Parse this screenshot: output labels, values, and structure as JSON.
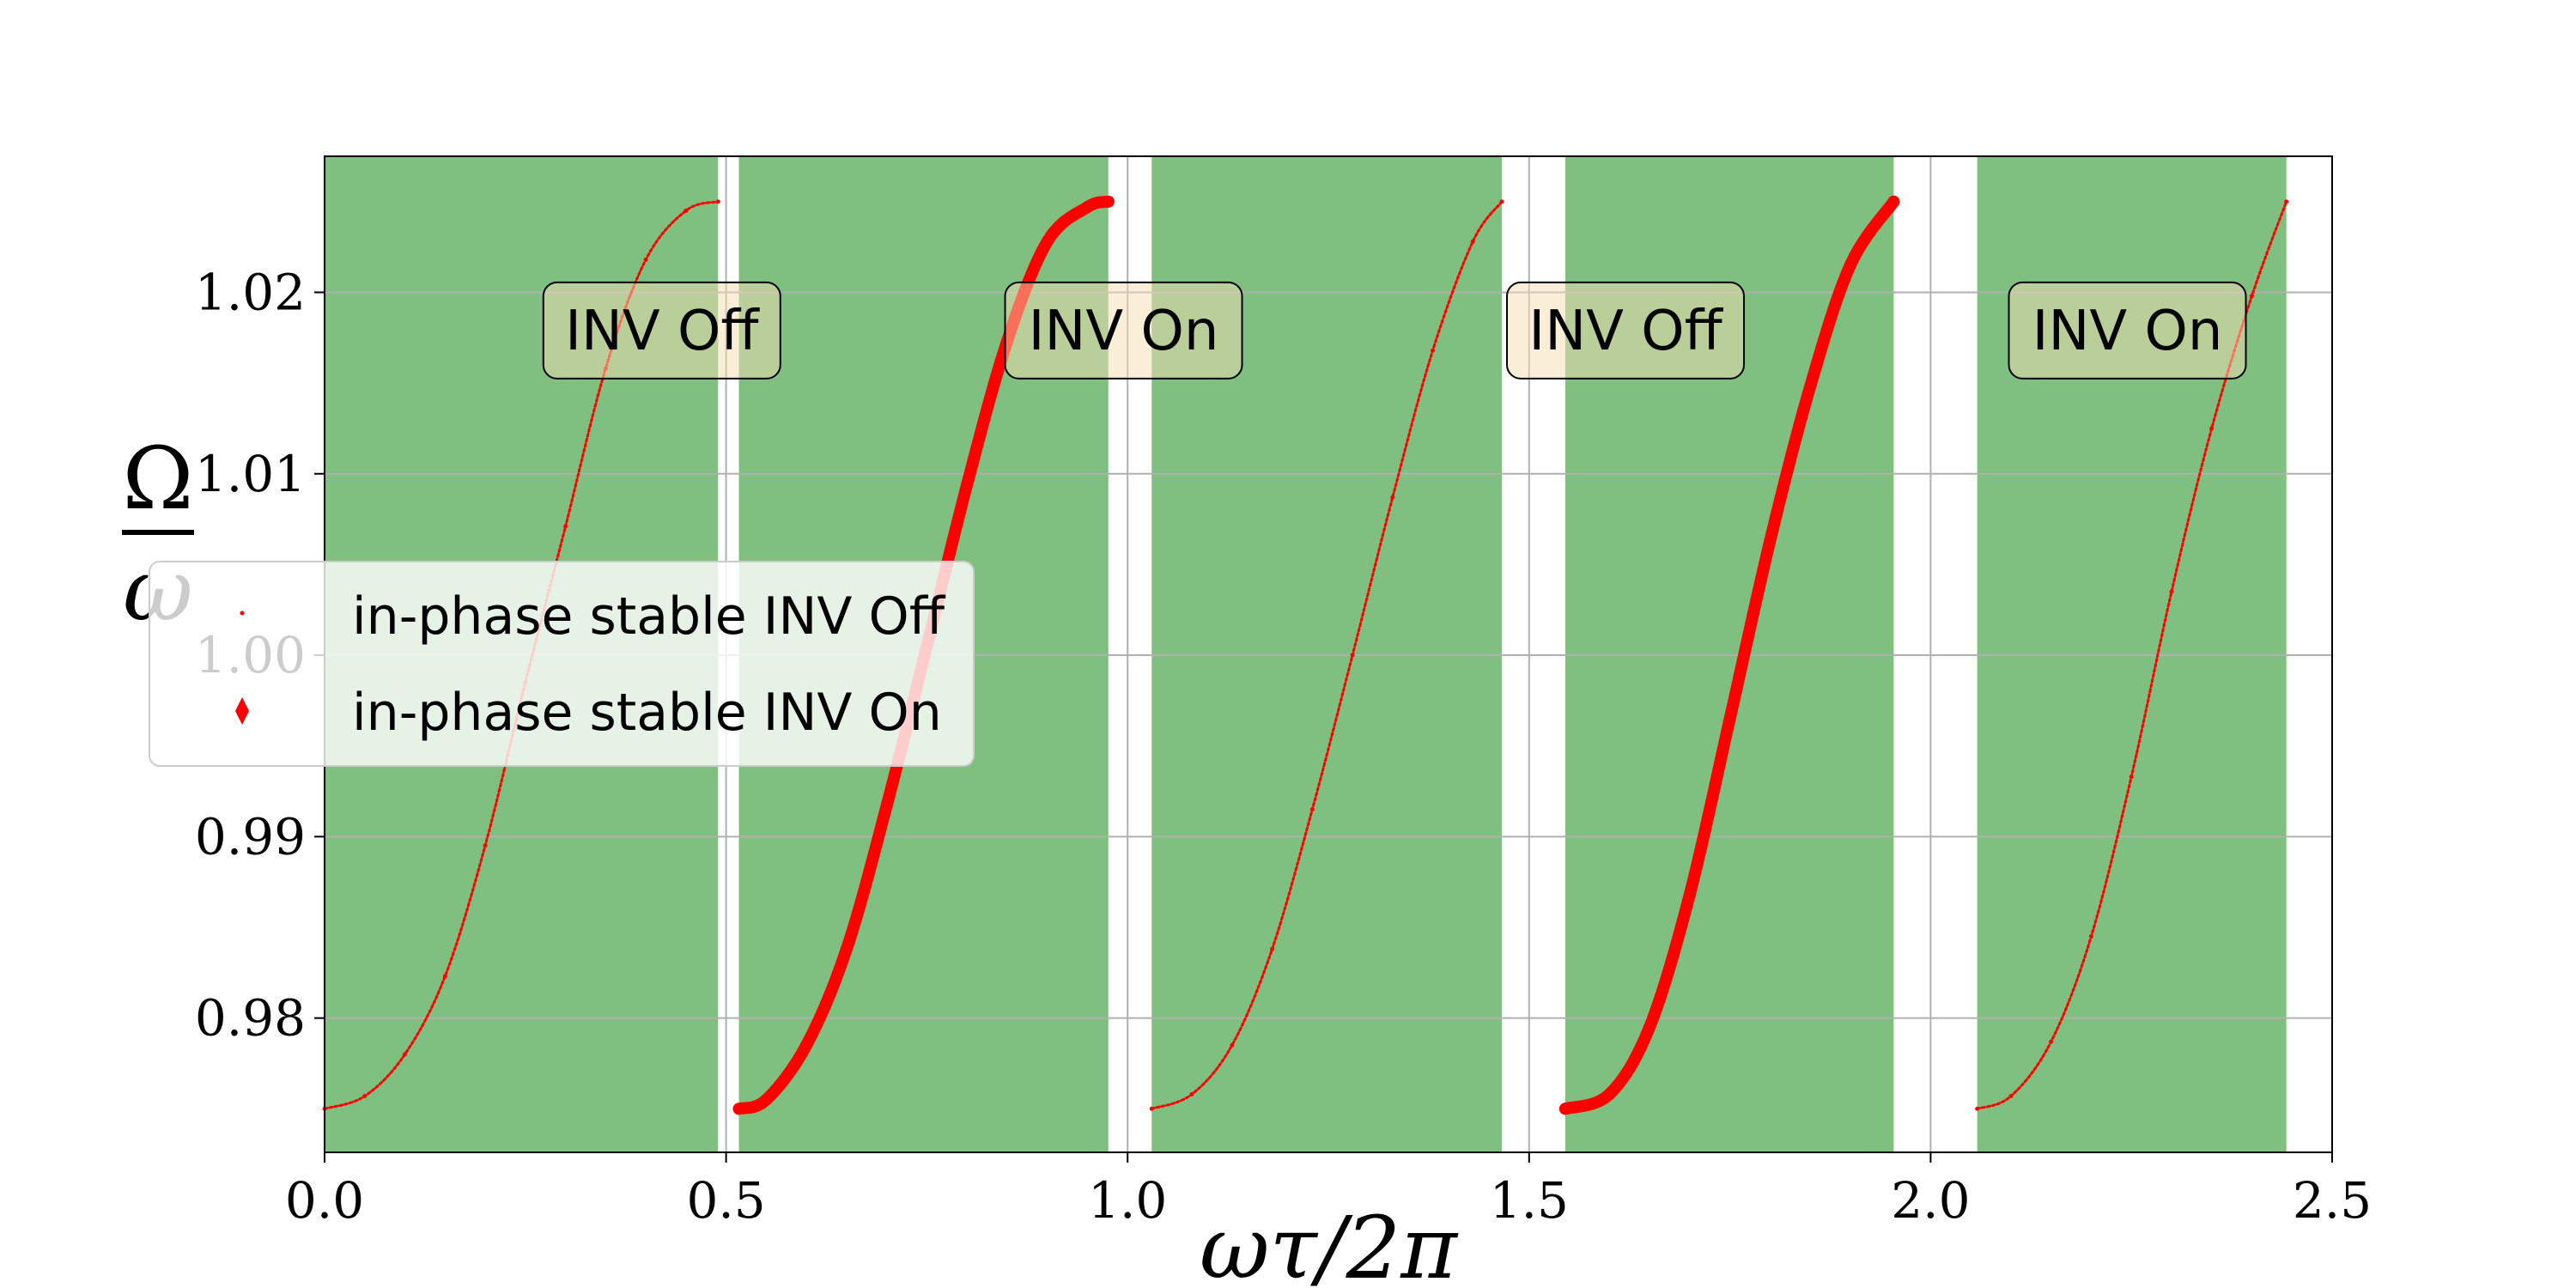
{
  "chart_data": {
    "type": "scatter",
    "xlabel": "ωτ/2π",
    "ylabel": {
      "numerator": "Ω",
      "denominator": "ω"
    },
    "xlim": [
      0.0,
      2.5
    ],
    "ylim": [
      0.9726,
      1.0275
    ],
    "xticks": [
      "0.0",
      "0.5",
      "1.0",
      "1.5",
      "2.0",
      "2.5"
    ],
    "yticks": [
      "0.98",
      "0.99",
      "1.00",
      "1.01",
      "1.02"
    ],
    "grid": true,
    "stable_regions": [
      [
        0.0,
        0.49
      ],
      [
        0.516,
        0.976
      ],
      [
        1.03,
        1.466
      ],
      [
        1.545,
        1.954
      ],
      [
        2.058,
        2.443
      ]
    ],
    "stable_region_color": "#7fbf7f",
    "series": [
      {
        "name": "in-phase stable INV Off",
        "marker": "small dot",
        "color": "#ff0000",
        "segments": [
          {
            "x": [
              0.0,
              0.05,
              0.1,
              0.15,
              0.2,
              0.25,
              0.3,
              0.35,
              0.4,
              0.45,
              0.49
            ],
            "y": [
              0.975,
              0.9757,
              0.978,
              0.9823,
              0.9895,
              0.9985,
              1.0071,
              1.0158,
              1.0218,
              1.0245,
              1.025
            ]
          },
          {
            "x": [
              1.03,
              1.08,
              1.13,
              1.18,
              1.23,
              1.28,
              1.33,
              1.38,
              1.43,
              1.466
            ],
            "y": [
              0.975,
              0.9758,
              0.9785,
              0.9838,
              0.9915,
              1.0,
              1.0087,
              1.0168,
              1.0228,
              1.025
            ]
          },
          {
            "x": [
              2.058,
              2.1,
              2.15,
              2.2,
              2.25,
              2.3,
              2.35,
              2.4,
              2.443
            ],
            "y": [
              0.975,
              0.9757,
              0.9787,
              0.9845,
              0.9933,
              1.0035,
              1.0125,
              1.0198,
              1.025
            ]
          }
        ]
      },
      {
        "name": "in-phase stable INV On",
        "marker": "thin diamond",
        "color": "#ff0000",
        "segments": [
          {
            "x": [
              0.516,
              0.55,
              0.6,
              0.65,
              0.7,
              0.75,
              0.8,
              0.85,
              0.9,
              0.95,
              0.976
            ],
            "y": [
              0.975,
              0.9755,
              0.9785,
              0.9838,
              0.9917,
              1.0005,
              1.0094,
              1.0173,
              1.0228,
              1.0247,
              1.025
            ]
          },
          {
            "x": [
              1.545,
              1.6,
              1.65,
              1.7,
              1.75,
              1.8,
              1.85,
              1.9,
              1.954
            ],
            "y": [
              0.975,
              0.9758,
              0.9795,
              0.9868,
              0.9965,
              1.0063,
              1.0148,
              1.0215,
              1.025
            ]
          }
        ]
      }
    ],
    "annotations": [
      {
        "text": "INV Off",
        "x": 0.42,
        "y": 1.0179
      },
      {
        "text": "INV On",
        "x": 0.995,
        "y": 1.0179
      },
      {
        "text": "INV Off",
        "x": 1.62,
        "y": 1.0179
      },
      {
        "text": "INV On",
        "x": 2.245,
        "y": 1.0179
      }
    ],
    "legend": {
      "position": "center-left",
      "entries": [
        "in-phase stable INV Off",
        "in-phase stable INV On"
      ]
    }
  }
}
